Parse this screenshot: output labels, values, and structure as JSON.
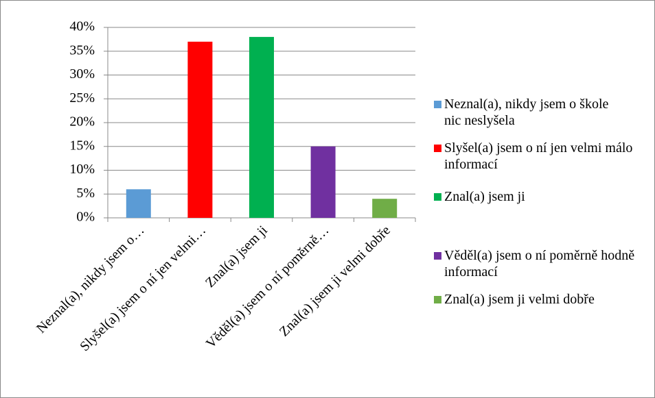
{
  "chart_data": {
    "type": "bar",
    "categories": [
      "Neznal(a), nikdy jsem o…",
      "Slyšel(a) jsem o ní jen velmi…",
      "Znal(a) jsem ji",
      "Věděl(a) jsem o ní poměrně…",
      "Znal(a) jsem ji velmi dobře"
    ],
    "values": [
      6,
      37,
      38,
      15,
      4
    ],
    "colors": [
      "#5b9bd5",
      "#ff0000",
      "#00b050",
      "#7030a0",
      "#70ad47"
    ],
    "legend": [
      "Neznal(a), nikdy jsem o škole nic neslyšela",
      "Slyšel(a) jsem o ní jen velmi málo informací",
      "Znal(a) jsem ji",
      "Věděl(a) jsem o ní poměrně hodně informací",
      "Znal(a) jsem ji velmi dobře"
    ],
    "ylim": [
      0,
      40
    ],
    "yticks": [
      {
        "value": 0,
        "label": "0%"
      },
      {
        "value": 5,
        "label": "5%"
      },
      {
        "value": 10,
        "label": "10%"
      },
      {
        "value": 15,
        "label": "15%"
      },
      {
        "value": 20,
        "label": "20%"
      },
      {
        "value": 25,
        "label": "25%"
      },
      {
        "value": 30,
        "label": "30%"
      },
      {
        "value": 35,
        "label": "35%"
      },
      {
        "value": 40,
        "label": "40%"
      }
    ],
    "grid": true
  }
}
